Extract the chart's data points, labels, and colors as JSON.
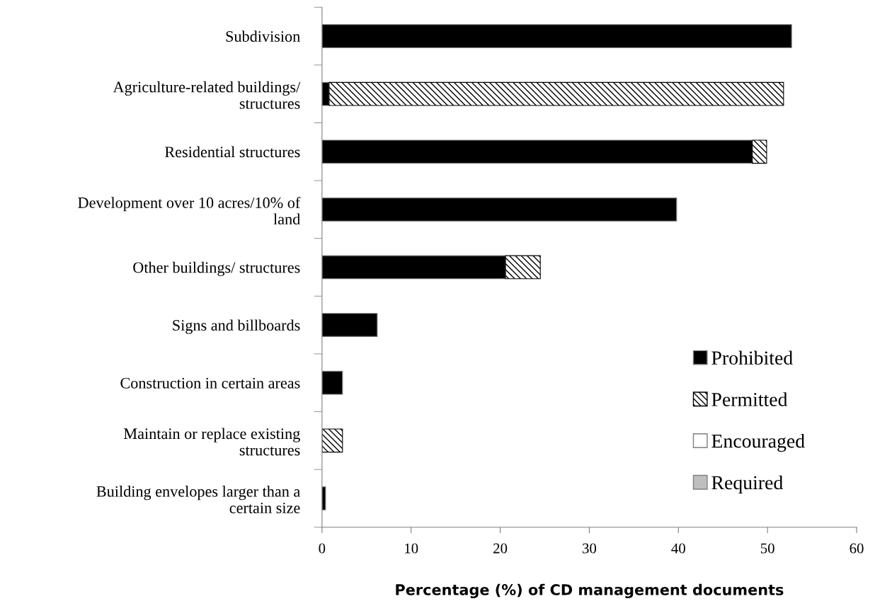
{
  "chart_data": {
    "type": "bar",
    "orientation": "horizontal",
    "stacked": true,
    "categories": [
      "Subdivision",
      "Agriculture-related buildings/\nstructures",
      "Residential structures",
      "Development over 10 acres/10% of\nland",
      "Other buildings/ structures",
      "Signs and billboards",
      "Construction in certain areas",
      "Maintain or replace existing\nstructures",
      "Building envelopes larger than a\ncertain size"
    ],
    "series": [
      {
        "name": "Prohibited",
        "color": "#000000",
        "values": [
          52.7,
          0.8,
          48.3,
          39.8,
          20.6,
          6.2,
          2.3,
          0,
          0.4
        ]
      },
      {
        "name": "Permitted",
        "color": "#000000",
        "values": [
          0,
          51.0,
          1.6,
          0,
          3.9,
          0,
          0,
          2.3,
          0
        ]
      },
      {
        "name": "Encouraged",
        "color": "#ffffff",
        "values": [
          0,
          0,
          0,
          0,
          0,
          0,
          0,
          0,
          0
        ]
      },
      {
        "name": "Required",
        "color": "#bfbfbf",
        "values": [
          0,
          0,
          0,
          0,
          0,
          0,
          0,
          0,
          0
        ]
      }
    ],
    "xlim": [
      0,
      60
    ],
    "xticks": [
      0,
      10,
      20,
      30,
      40,
      50,
      60
    ],
    "xlabel": "Percentage (%) of CD management documents",
    "grid": false,
    "legend": "bottom right"
  }
}
